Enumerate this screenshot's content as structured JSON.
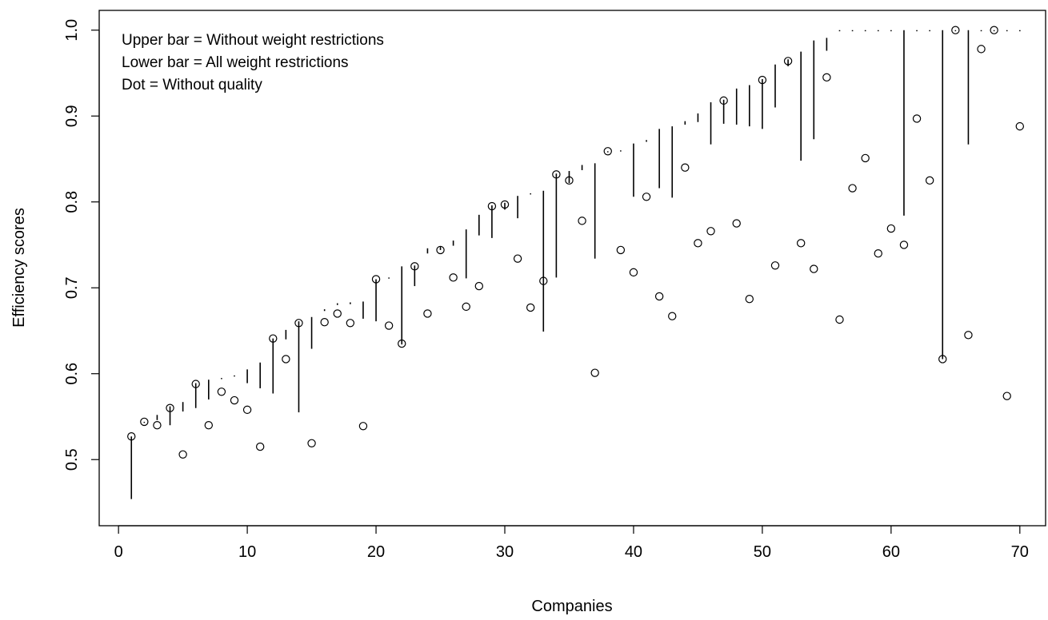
{
  "chart_data": {
    "type": "scatter",
    "xlabel": "Companies",
    "ylabel": "Efficiency scores",
    "xlim": [
      -1.5,
      72
    ],
    "ylim": [
      0.423,
      1.023
    ],
    "xticks": [
      0,
      10,
      20,
      30,
      40,
      50,
      60,
      70
    ],
    "yticks": [
      0.5,
      0.6,
      0.7,
      0.8,
      0.9,
      1.0
    ],
    "xtick_labels": [
      "0",
      "10",
      "20",
      "30",
      "40",
      "50",
      "60",
      "70"
    ],
    "ytick_labels": [
      "0.5",
      "0.6",
      "0.7",
      "0.8",
      "0.9",
      "1.0"
    ],
    "legend": [
      "Upper bar = Without weight restrictions",
      "Lower bar = All weight restrictions",
      "Dot = Without quality"
    ],
    "companies": [
      1,
      2,
      3,
      4,
      5,
      6,
      7,
      8,
      9,
      10,
      11,
      12,
      13,
      14,
      15,
      16,
      17,
      18,
      19,
      20,
      21,
      22,
      23,
      24,
      25,
      26,
      27,
      28,
      29,
      30,
      31,
      32,
      33,
      34,
      35,
      36,
      37,
      38,
      39,
      40,
      41,
      42,
      43,
      44,
      45,
      46,
      47,
      48,
      49,
      50,
      51,
      52,
      53,
      54,
      55,
      56,
      57,
      58,
      59,
      60,
      61,
      62,
      63,
      64,
      65,
      66,
      67,
      68,
      69,
      70
    ],
    "series": [
      {
        "name": "Without weight restrictions",
        "values": [
          0.527,
          0.544,
          0.552,
          0.562,
          0.567,
          0.589,
          0.593,
          0.595,
          0.598,
          0.605,
          0.613,
          0.641,
          0.651,
          0.661,
          0.666,
          0.675,
          0.682,
          0.683,
          0.684,
          0.71,
          0.712,
          0.725,
          0.726,
          0.746,
          0.748,
          0.755,
          0.768,
          0.785,
          0.796,
          0.799,
          0.807,
          0.81,
          0.813,
          0.833,
          0.836,
          0.843,
          0.845,
          0.859,
          0.86,
          0.868,
          0.87,
          0.885,
          0.888,
          0.894,
          0.903,
          0.916,
          0.919,
          0.932,
          0.936,
          0.943,
          0.96,
          0.966,
          0.975,
          0.988,
          0.991,
          1.0,
          1.0,
          1.0,
          1.0,
          1.0,
          1.0,
          1.0,
          1.0,
          1.0,
          1.0,
          1.0,
          1.0,
          1.0,
          1.0,
          1.0
        ]
      },
      {
        "name": "All weight restrictions",
        "values": [
          0.454,
          0.543,
          0.546,
          0.54,
          0.556,
          0.56,
          0.57,
          0.594,
          0.597,
          0.589,
          0.583,
          0.577,
          0.64,
          0.555,
          0.629,
          0.673,
          0.68,
          0.681,
          0.664,
          0.661,
          0.711,
          0.634,
          0.702,
          0.74,
          0.744,
          0.749,
          0.711,
          0.761,
          0.758,
          0.791,
          0.781,
          0.809,
          0.649,
          0.712,
          0.822,
          0.837,
          0.734,
          0.858,
          0.859,
          0.806,
          0.872,
          0.816,
          0.805,
          0.89,
          0.893,
          0.867,
          0.891,
          0.89,
          0.888,
          0.885,
          0.91,
          0.958,
          0.848,
          0.873,
          0.976,
          1.0,
          1.0,
          1.0,
          1.0,
          1.0,
          0.784,
          1.0,
          1.0,
          0.617,
          1.0,
          0.867,
          1.0,
          1.0,
          1.0,
          1.0
        ]
      },
      {
        "name": "Without quality",
        "values": [
          0.527,
          0.544,
          0.54,
          0.56,
          0.506,
          0.588,
          0.54,
          0.579,
          0.569,
          0.558,
          0.515,
          0.641,
          0.617,
          0.659,
          0.519,
          0.66,
          0.67,
          0.659,
          0.539,
          0.71,
          0.656,
          0.635,
          0.725,
          0.67,
          0.744,
          0.712,
          0.678,
          0.702,
          0.795,
          0.797,
          0.734,
          0.677,
          0.708,
          0.832,
          0.825,
          0.778,
          0.601,
          0.859,
          0.744,
          0.718,
          0.806,
          0.69,
          0.667,
          0.84,
          0.752,
          0.766,
          0.918,
          0.775,
          0.687,
          0.942,
          0.726,
          0.964,
          0.752,
          0.722,
          0.945,
          0.663,
          0.816,
          0.851,
          0.74,
          0.769,
          0.75,
          0.897,
          0.825,
          0.617,
          1.0,
          0.645,
          0.978,
          1.0,
          0.574,
          0.888
        ]
      }
    ],
    "grid": false,
    "legend_placement": "top-left"
  }
}
